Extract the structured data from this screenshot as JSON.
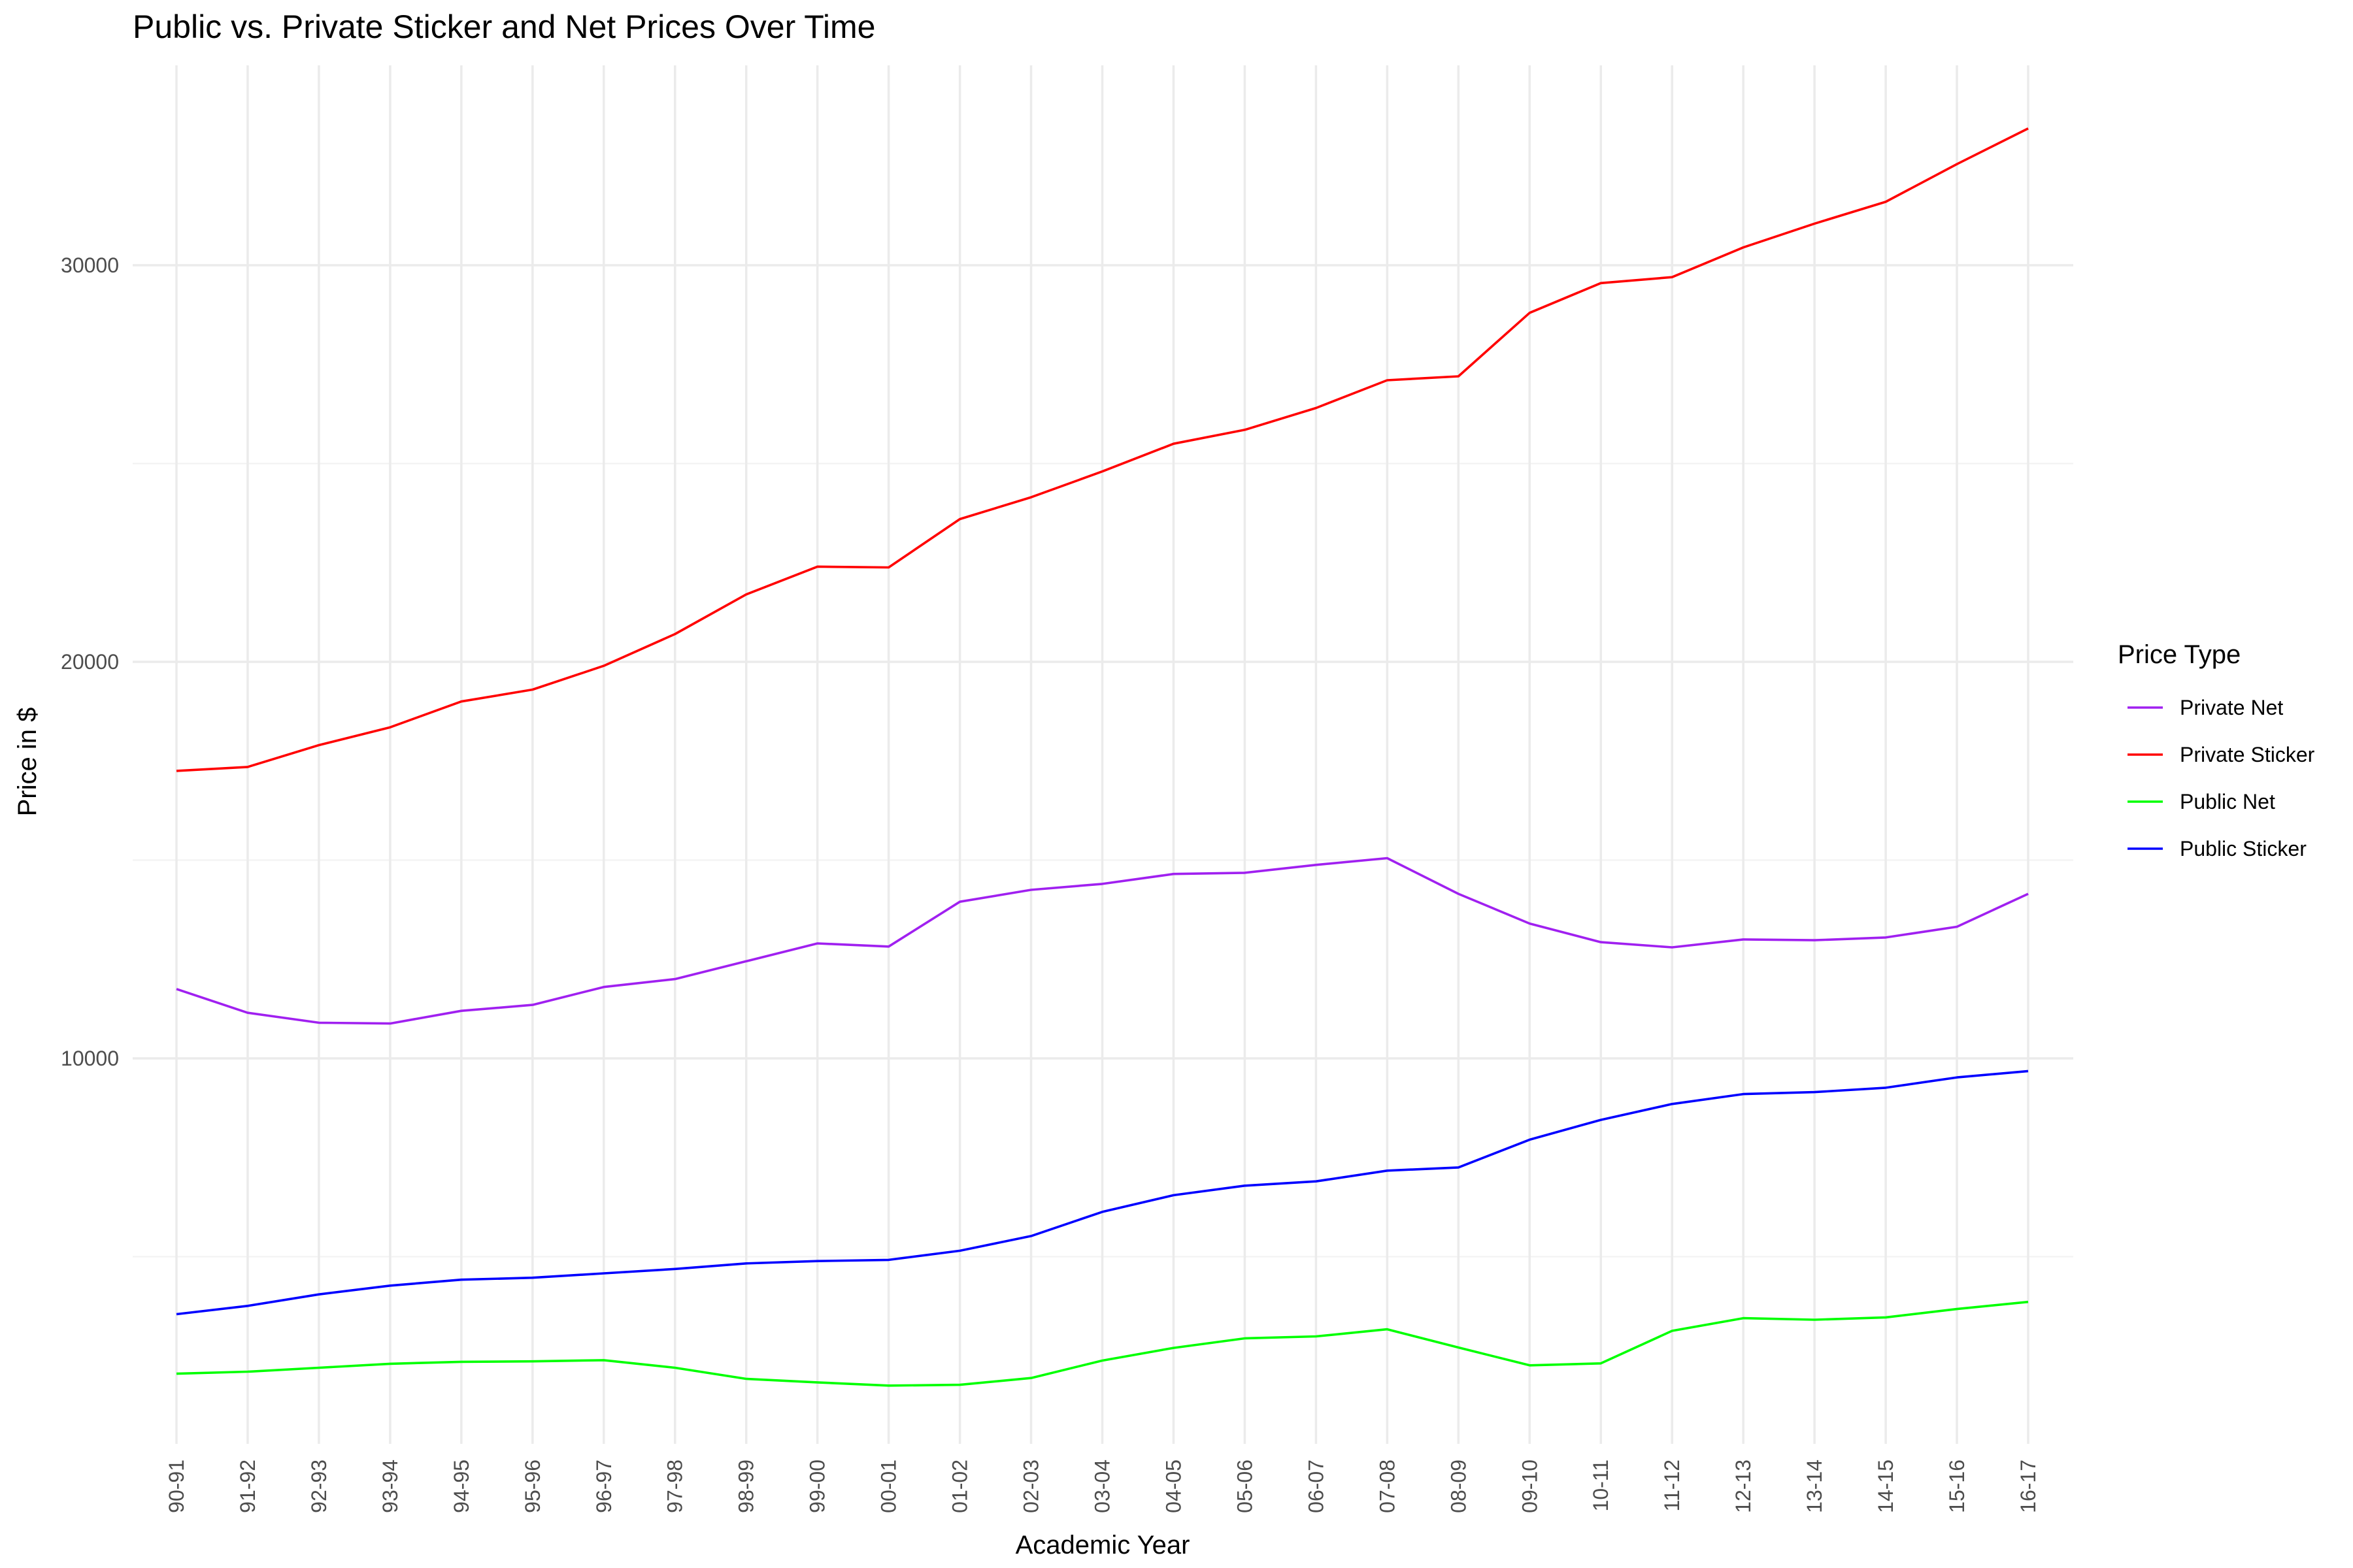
{
  "chart_data": {
    "type": "line",
    "title": "Public vs. Private Sticker and Net Prices Over Time",
    "xlabel": "Academic Year",
    "ylabel": "Price in $",
    "legend_title": "Price Type",
    "legend_position": "right",
    "grid": true,
    "ylim": [
      2200,
      34500
    ],
    "y_ticks": [
      10000,
      20000,
      30000
    ],
    "y_minor_ticks": [
      5000,
      15000,
      25000
    ],
    "categories": [
      "90-91",
      "91-92",
      "92-93",
      "93-94",
      "94-95",
      "95-96",
      "96-97",
      "97-98",
      "98-99",
      "99-00",
      "00-01",
      "01-02",
      "02-03",
      "03-04",
      "04-05",
      "05-06",
      "06-07",
      "07-08",
      "08-09",
      "09-10",
      "10-11",
      "11-12",
      "12-13",
      "13-14",
      "14-15",
      "15-16",
      "16-17"
    ],
    "series": [
      {
        "name": "Private Net",
        "color": "#a020f0",
        "values": [
          11750,
          11150,
          10900,
          10880,
          11200,
          11350,
          11800,
          12000,
          12450,
          12900,
          12820,
          13950,
          14250,
          14400,
          14650,
          14680,
          14880,
          15050,
          14150,
          13400,
          12930,
          12800,
          13000,
          12980,
          13050,
          13320,
          14150
        ]
      },
      {
        "name": "Private Sticker",
        "color": "#ff0000",
        "values": [
          17250,
          17350,
          17900,
          18350,
          19000,
          19300,
          19900,
          20700,
          21700,
          22400,
          22380,
          23600,
          24150,
          24800,
          25500,
          25850,
          26400,
          27100,
          27200,
          28800,
          29550,
          29700,
          30450,
          31050,
          31600,
          32550,
          33450
        ]
      },
      {
        "name": "Public Net",
        "color": "#00ff00",
        "values": [
          2050,
          2100,
          2200,
          2300,
          2350,
          2360,
          2390,
          2200,
          1920,
          1830,
          1750,
          1770,
          1940,
          2380,
          2700,
          2940,
          2990,
          3170,
          2710,
          2260,
          2310,
          3130,
          3450,
          3410,
          3470,
          3680,
          3860
        ]
      },
      {
        "name": "Public Sticker",
        "color": "#0000ff",
        "values": [
          3550,
          3760,
          4050,
          4270,
          4420,
          4470,
          4580,
          4690,
          4830,
          4890,
          4920,
          5150,
          5520,
          6130,
          6550,
          6790,
          6900,
          7170,
          7250,
          7950,
          8450,
          8850,
          9100,
          9150,
          9260,
          9520,
          9680
        ]
      }
    ]
  }
}
